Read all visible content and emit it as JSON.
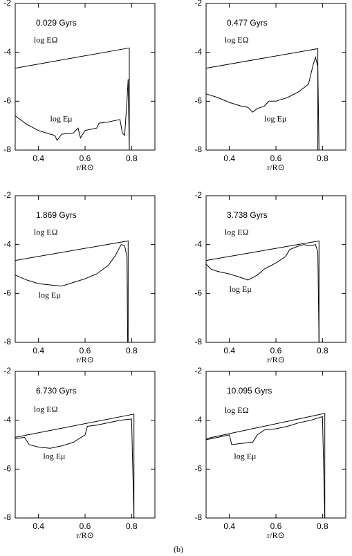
{
  "chart_data": [
    {
      "type": "line",
      "title": "0.029 Gyrs",
      "xlabel": "r/R⊙",
      "xlim": [
        0.3,
        0.9
      ],
      "ylim": [
        -8,
        -2
      ],
      "xticks": [
        0.4,
        0.6,
        0.8
      ],
      "yticks": [
        -8,
        -6,
        -4,
        -2
      ],
      "color": "#000000",
      "series": [
        {
          "name": "log EΩ",
          "x": [
            0.3,
            0.79,
            0.79
          ],
          "values": [
            -4.65,
            -3.82,
            -8
          ]
        },
        {
          "name": "log Eμ",
          "x": [
            0.3,
            0.35,
            0.4,
            0.45,
            0.47,
            0.48,
            0.5,
            0.55,
            0.57,
            0.58,
            0.6,
            0.65,
            0.66,
            0.7,
            0.75,
            0.76,
            0.77,
            0.78,
            0.785,
            0.79
          ],
          "values": [
            -6.6,
            -6.95,
            -7.2,
            -7.35,
            -7.4,
            -7.6,
            -7.35,
            -7.3,
            -7.1,
            -7.5,
            -7.2,
            -7.1,
            -6.9,
            -6.85,
            -6.75,
            -7.3,
            -7.4,
            -6.0,
            -5.1,
            -8
          ]
        }
      ]
    },
    {
      "type": "line",
      "title": "0.477 Gyrs",
      "xlabel": "r/R⊙",
      "xlim": [
        0.3,
        0.9
      ],
      "ylim": [
        -8,
        -2
      ],
      "xticks": [
        0.4,
        0.6,
        0.8
      ],
      "yticks": [
        -8,
        -6,
        -4,
        -2
      ],
      "color": "#000000",
      "series": [
        {
          "name": "log EΩ",
          "x": [
            0.3,
            0.78,
            0.78
          ],
          "values": [
            -4.65,
            -3.85,
            -8
          ]
        },
        {
          "name": "log Eμ",
          "x": [
            0.3,
            0.35,
            0.4,
            0.45,
            0.48,
            0.5,
            0.52,
            0.55,
            0.57,
            0.6,
            0.65,
            0.7,
            0.74,
            0.76,
            0.77,
            0.78,
            0.785
          ],
          "values": [
            -5.7,
            -5.85,
            -6.05,
            -6.2,
            -6.25,
            -6.45,
            -6.3,
            -6.2,
            -6.0,
            -6.0,
            -5.85,
            -5.6,
            -5.3,
            -4.5,
            -4.2,
            -4.6,
            -8
          ]
        }
      ]
    },
    {
      "type": "line",
      "title": "1.869 Gyrs",
      "xlabel": "r/R⊙",
      "xlim": [
        0.3,
        0.9
      ],
      "ylim": [
        -8,
        -2
      ],
      "xticks": [
        0.4,
        0.6,
        0.8
      ],
      "yticks": [
        -8,
        -6,
        -4,
        -2
      ],
      "color": "#000000",
      "series": [
        {
          "name": "log EΩ",
          "x": [
            0.3,
            0.785,
            0.785
          ],
          "values": [
            -4.65,
            -3.85,
            -8
          ]
        },
        {
          "name": "log Eμ",
          "x": [
            0.3,
            0.35,
            0.4,
            0.45,
            0.5,
            0.55,
            0.6,
            0.65,
            0.7,
            0.73,
            0.755,
            0.77,
            0.78,
            0.783
          ],
          "values": [
            -5.25,
            -5.45,
            -5.6,
            -5.65,
            -5.7,
            -5.55,
            -5.4,
            -5.2,
            -4.85,
            -4.45,
            -4.0,
            -4.05,
            -4.5,
            -8
          ]
        }
      ]
    },
    {
      "type": "line",
      "title": "3.738 Gyrs",
      "xlabel": "r/R⊙",
      "xlim": [
        0.3,
        0.9
      ],
      "ylim": [
        -8,
        -2
      ],
      "xticks": [
        0.4,
        0.6,
        0.8
      ],
      "yticks": [
        -8,
        -6,
        -4,
        -2
      ],
      "color": "#000000",
      "series": [
        {
          "name": "log EΩ",
          "x": [
            0.3,
            0.785,
            0.785
          ],
          "values": [
            -4.65,
            -3.85,
            -8
          ]
        },
        {
          "name": "log Eμ",
          "x": [
            0.3,
            0.32,
            0.35,
            0.4,
            0.45,
            0.48,
            0.52,
            0.55,
            0.6,
            0.64,
            0.66,
            0.7,
            0.72,
            0.75,
            0.77,
            0.78,
            0.785
          ],
          "values": [
            -4.8,
            -5.0,
            -5.1,
            -5.2,
            -5.35,
            -5.45,
            -5.25,
            -5.0,
            -4.75,
            -4.5,
            -4.2,
            -4.05,
            -4.0,
            -4.05,
            -4.0,
            -4.3,
            -8
          ]
        }
      ]
    },
    {
      "type": "line",
      "title": "6.730 Gyrs",
      "xlabel": "r/R⊙",
      "xlim": [
        0.3,
        0.9
      ],
      "ylim": [
        -8,
        -2
      ],
      "xticks": [
        0.4,
        0.6,
        0.8
      ],
      "yticks": [
        -8,
        -6,
        -4,
        -2
      ],
      "color": "#000000",
      "series": [
        {
          "name": "log EΩ",
          "x": [
            0.3,
            0.81,
            0.81
          ],
          "values": [
            -4.7,
            -3.75,
            -8
          ]
        },
        {
          "name": "log Eμ",
          "x": [
            0.3,
            0.34,
            0.36,
            0.4,
            0.45,
            0.5,
            0.55,
            0.6,
            0.61,
            0.65,
            0.7,
            0.75,
            0.8,
            0.81
          ],
          "values": [
            -4.75,
            -4.7,
            -5.0,
            -5.1,
            -5.15,
            -5.05,
            -4.9,
            -4.6,
            -4.25,
            -4.2,
            -4.1,
            -4.0,
            -3.95,
            -8
          ]
        }
      ]
    },
    {
      "type": "line",
      "title": "10.095 Gyrs",
      "xlabel": "r/R⊙",
      "xlim": [
        0.3,
        0.9
      ],
      "ylim": [
        -8,
        -2
      ],
      "xticks": [
        0.4,
        0.6,
        0.8
      ],
      "yticks": [
        -8,
        -6,
        -4,
        -2
      ],
      "color": "#000000",
      "series": [
        {
          "name": "log EΩ",
          "x": [
            0.3,
            0.81,
            0.81
          ],
          "values": [
            -4.75,
            -3.72,
            -8
          ]
        },
        {
          "name": "log Eμ",
          "x": [
            0.3,
            0.4,
            0.41,
            0.45,
            0.5,
            0.52,
            0.55,
            0.6,
            0.65,
            0.7,
            0.75,
            0.8,
            0.81
          ],
          "values": [
            -4.8,
            -4.6,
            -5.0,
            -4.95,
            -4.9,
            -4.6,
            -4.4,
            -4.35,
            -4.25,
            -4.1,
            -4.0,
            -3.85,
            -8
          ]
        }
      ]
    }
  ],
  "caption": "(b)"
}
